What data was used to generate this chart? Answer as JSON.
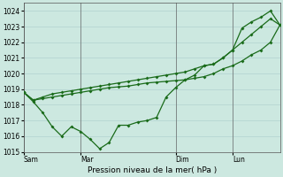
{
  "xlabel": "Pression niveau de la mer( hPa )",
  "ylim": [
    1015,
    1024.5
  ],
  "yticks": [
    1015,
    1016,
    1017,
    1018,
    1019,
    1020,
    1021,
    1022,
    1023,
    1024
  ],
  "bg_color": "#cce8e0",
  "grid_color": "#aacccc",
  "line_color": "#1a6b1a",
  "vline_color": "#666666",
  "day_labels": [
    "Sam",
    "Mar",
    "Dim",
    "Lun"
  ],
  "day_positions": [
    0,
    6,
    16,
    22
  ],
  "xlim": [
    0,
    27
  ],
  "series1_x": [
    0,
    1,
    2,
    3,
    4,
    5,
    6,
    7,
    8,
    9,
    10,
    11,
    12,
    13,
    14,
    15,
    16,
    17,
    18,
    19,
    20,
    21,
    22,
    23,
    24,
    25,
    26,
    27
  ],
  "series1": [
    1018.8,
    1018.2,
    1017.5,
    1016.6,
    1016.0,
    1016.6,
    1016.3,
    1015.8,
    1015.2,
    1015.6,
    1016.7,
    1016.7,
    1016.9,
    1017.0,
    1017.2,
    1018.5,
    1019.1,
    1019.6,
    1019.9,
    1020.5,
    1020.6,
    1021.0,
    1021.5,
    1022.9,
    1023.3,
    1023.6,
    1024.0,
    1023.1
  ],
  "series2_x": [
    0,
    1,
    2,
    3,
    4,
    5,
    6,
    7,
    8,
    9,
    10,
    11,
    12,
    13,
    14,
    15,
    16,
    17,
    18,
    19,
    20,
    21,
    22,
    23,
    24,
    25,
    26,
    27
  ],
  "series2": [
    1018.8,
    1018.3,
    1018.5,
    1018.7,
    1018.8,
    1018.9,
    1019.0,
    1019.1,
    1019.2,
    1019.3,
    1019.4,
    1019.5,
    1019.6,
    1019.7,
    1019.8,
    1019.9,
    1020.0,
    1020.1,
    1020.3,
    1020.5,
    1020.6,
    1021.0,
    1021.5,
    1022.0,
    1022.5,
    1023.0,
    1023.5,
    1023.1
  ],
  "series3_x": [
    0,
    1,
    2,
    3,
    4,
    5,
    6,
    7,
    8,
    9,
    10,
    11,
    12,
    13,
    14,
    15,
    16,
    17,
    18,
    19,
    20,
    21,
    22,
    23,
    24,
    25,
    26,
    27
  ],
  "series3": [
    1018.8,
    1018.3,
    1018.4,
    1018.5,
    1018.6,
    1018.7,
    1018.8,
    1018.9,
    1019.0,
    1019.1,
    1019.15,
    1019.2,
    1019.3,
    1019.4,
    1019.45,
    1019.5,
    1019.55,
    1019.6,
    1019.7,
    1019.8,
    1020.0,
    1020.3,
    1020.5,
    1020.8,
    1021.2,
    1021.5,
    1022.0,
    1023.1
  ],
  "marker_size": 2.0,
  "line_width": 0.9,
  "tick_fontsize": 5.5,
  "xlabel_fontsize": 6.5
}
